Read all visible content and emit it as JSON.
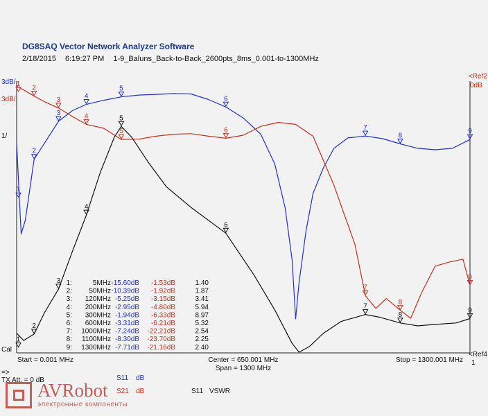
{
  "app": {
    "title": "DG8SAQ Vector Network Analyzer Software",
    "date": "2/18/2015",
    "time": "6:19:27 PM",
    "measurement": "1-9_Baluns_Back-to-Back_2600pts_8ms_0.001-to-1300MHz"
  },
  "chart_data": {
    "type": "line",
    "x_unit": "MHz",
    "x_range": [
      0.001,
      1300.001
    ],
    "axis_labels": {
      "left_top": "3dB/",
      "left_ref_blue": "3dB/",
      "left_swr_scale": "1/",
      "left_bottom": "Cal",
      "right_ref_top": "<Ref2",
      "right_ref_top_value": "0dB",
      "right_ref_bottom": "<Ref4",
      "right_ref_bottom_value": "1"
    },
    "footer": {
      "start": "Start = 0.001 MHz",
      "center": "Center = 650.001 MHz",
      "span": "Span = 1300 MHz",
      "stop": "Stop = 1300.001 MHz"
    },
    "series": [
      {
        "name": "S11 dB",
        "color": "#2030c8",
        "points": [
          [
            0.001,
            -8.2
          ],
          [
            13,
            -20.5
          ],
          [
            25,
            -18.6
          ],
          [
            50,
            -10.39
          ],
          [
            80,
            -8.2
          ],
          [
            120,
            -5.25
          ],
          [
            160,
            -3.8
          ],
          [
            200,
            -2.95
          ],
          [
            250,
            -2.4
          ],
          [
            300,
            -1.94
          ],
          [
            350,
            -1.7
          ],
          [
            400,
            -1.6
          ],
          [
            450,
            -1.5
          ],
          [
            500,
            -1.55
          ],
          [
            550,
            -2.3
          ],
          [
            600,
            -3.31
          ],
          [
            650,
            -4.8
          ],
          [
            700,
            -7.0
          ],
          [
            740,
            -11.0
          ],
          [
            770,
            -17.0
          ],
          [
            790,
            -24.0
          ],
          [
            800,
            -32.0
          ],
          [
            810,
            -27.0
          ],
          [
            830,
            -20.0
          ],
          [
            850,
            -15.0
          ],
          [
            880,
            -11.5
          ],
          [
            910,
            -8.9
          ],
          [
            950,
            -7.5
          ],
          [
            1000,
            -7.24
          ],
          [
            1050,
            -7.6
          ],
          [
            1100,
            -8.3
          ],
          [
            1150,
            -8.9
          ],
          [
            1200,
            -9.1
          ],
          [
            1250,
            -8.9
          ],
          [
            1300,
            -7.71
          ]
        ]
      },
      {
        "name": "S21 dB",
        "color": "#c8301e",
        "points": [
          [
            0.001,
            -0.9
          ],
          [
            20,
            -1.3
          ],
          [
            50,
            -1.92
          ],
          [
            80,
            -2.5
          ],
          [
            120,
            -3.15
          ],
          [
            160,
            -4.0
          ],
          [
            200,
            -4.8
          ],
          [
            250,
            -5.2
          ],
          [
            300,
            -6.33
          ],
          [
            350,
            -6.3
          ],
          [
            400,
            -6.0
          ],
          [
            450,
            -5.8
          ],
          [
            500,
            -5.75
          ],
          [
            550,
            -6.0
          ],
          [
            600,
            -6.21
          ],
          [
            650,
            -5.9
          ],
          [
            700,
            -5.0
          ],
          [
            750,
            -4.6
          ],
          [
            800,
            -4.8
          ],
          [
            850,
            -6.0
          ],
          [
            880,
            -8.5
          ],
          [
            910,
            -11.0
          ],
          [
            940,
            -14.0
          ],
          [
            970,
            -17.0
          ],
          [
            1000,
            -22.21
          ],
          [
            1030,
            -23.5
          ],
          [
            1060,
            -22.5
          ],
          [
            1100,
            -23.7
          ],
          [
            1130,
            -24.5
          ],
          [
            1160,
            -22.0
          ],
          [
            1200,
            -19.2
          ],
          [
            1240,
            -18.8
          ],
          [
            1280,
            -18.5
          ],
          [
            1300,
            -21.16
          ]
        ]
      },
      {
        "name": "S11 VSWR",
        "color": "#111111",
        "points": [
          [
            0.001,
            1.9
          ],
          [
            20,
            1.65
          ],
          [
            50,
            1.87
          ],
          [
            80,
            2.6
          ],
          [
            120,
            3.41
          ],
          [
            160,
            4.7
          ],
          [
            200,
            5.94
          ],
          [
            240,
            7.4
          ],
          [
            280,
            8.6
          ],
          [
            300,
            8.97
          ],
          [
            330,
            8.6
          ],
          [
            380,
            7.7
          ],
          [
            430,
            6.9
          ],
          [
            500,
            6.2
          ],
          [
            600,
            5.32
          ],
          [
            680,
            3.9
          ],
          [
            740,
            2.7
          ],
          [
            790,
            1.55
          ],
          [
            810,
            1.25
          ],
          [
            840,
            1.45
          ],
          [
            880,
            1.9
          ],
          [
            930,
            2.3
          ],
          [
            1000,
            2.54
          ],
          [
            1040,
            2.45
          ],
          [
            1100,
            2.25
          ],
          [
            1150,
            2.15
          ],
          [
            1200,
            2.2
          ],
          [
            1260,
            2.25
          ],
          [
            1300,
            2.4
          ]
        ]
      }
    ],
    "markers": [
      {
        "n": "1",
        "freq": "5MHz",
        "s11": "-15.60dB",
        "s21": "-1.53dB",
        "swr": "1.40"
      },
      {
        "n": "2",
        "freq": "50MHz",
        "s11": "-10.39dB",
        "s21": "-1.92dB",
        "swr": "1.87"
      },
      {
        "n": "3",
        "freq": "120MHz",
        "s11": "-5.25dB",
        "s21": "-3.15dB",
        "swr": "3.41"
      },
      {
        "n": "4",
        "freq": "200MHz",
        "s11": "-2.95dB",
        "s21": "-4.80dB",
        "swr": "5.94"
      },
      {
        "n": "5",
        "freq": "300MHz",
        "s11": "-1.94dB",
        "s21": "-6.33dB",
        "swr": "8.97"
      },
      {
        "n": "6",
        "freq": "600MHz",
        "s11": "-3.31dB",
        "s21": "-6.21dB",
        "swr": "5.32"
      },
      {
        "n": "7",
        "freq": "1000MHz",
        "s11": "-7.24dB",
        "s21": "-22.21dB",
        "swr": "2.54"
      },
      {
        "n": "8",
        "freq": "1100MHz",
        "s11": "-8.30dB",
        "s21": "-23.70dB",
        "swr": "2.25"
      },
      {
        "n": "9",
        "freq": "1300MHz",
        "s11": "-7.71dB",
        "s21": "-21.16dB",
        "swr": "2.40"
      }
    ],
    "marker_colors": {
      "freq": "#111111",
      "s11": "#2030c8",
      "s21": "#c8301e",
      "swr": "#111111"
    }
  },
  "bottom_panel": {
    "line1": "=>",
    "line2": "TX Att. = 0 dB",
    "legend_s11": "S11",
    "legend_s11_unit": "dB",
    "legend_s21": "S21",
    "legend_s21_unit": "dB",
    "legend_vswr_param": "S11",
    "legend_vswr": "VSWR"
  },
  "watermark": {
    "name": "AVRobot",
    "sub": "электронные компоненты"
  }
}
